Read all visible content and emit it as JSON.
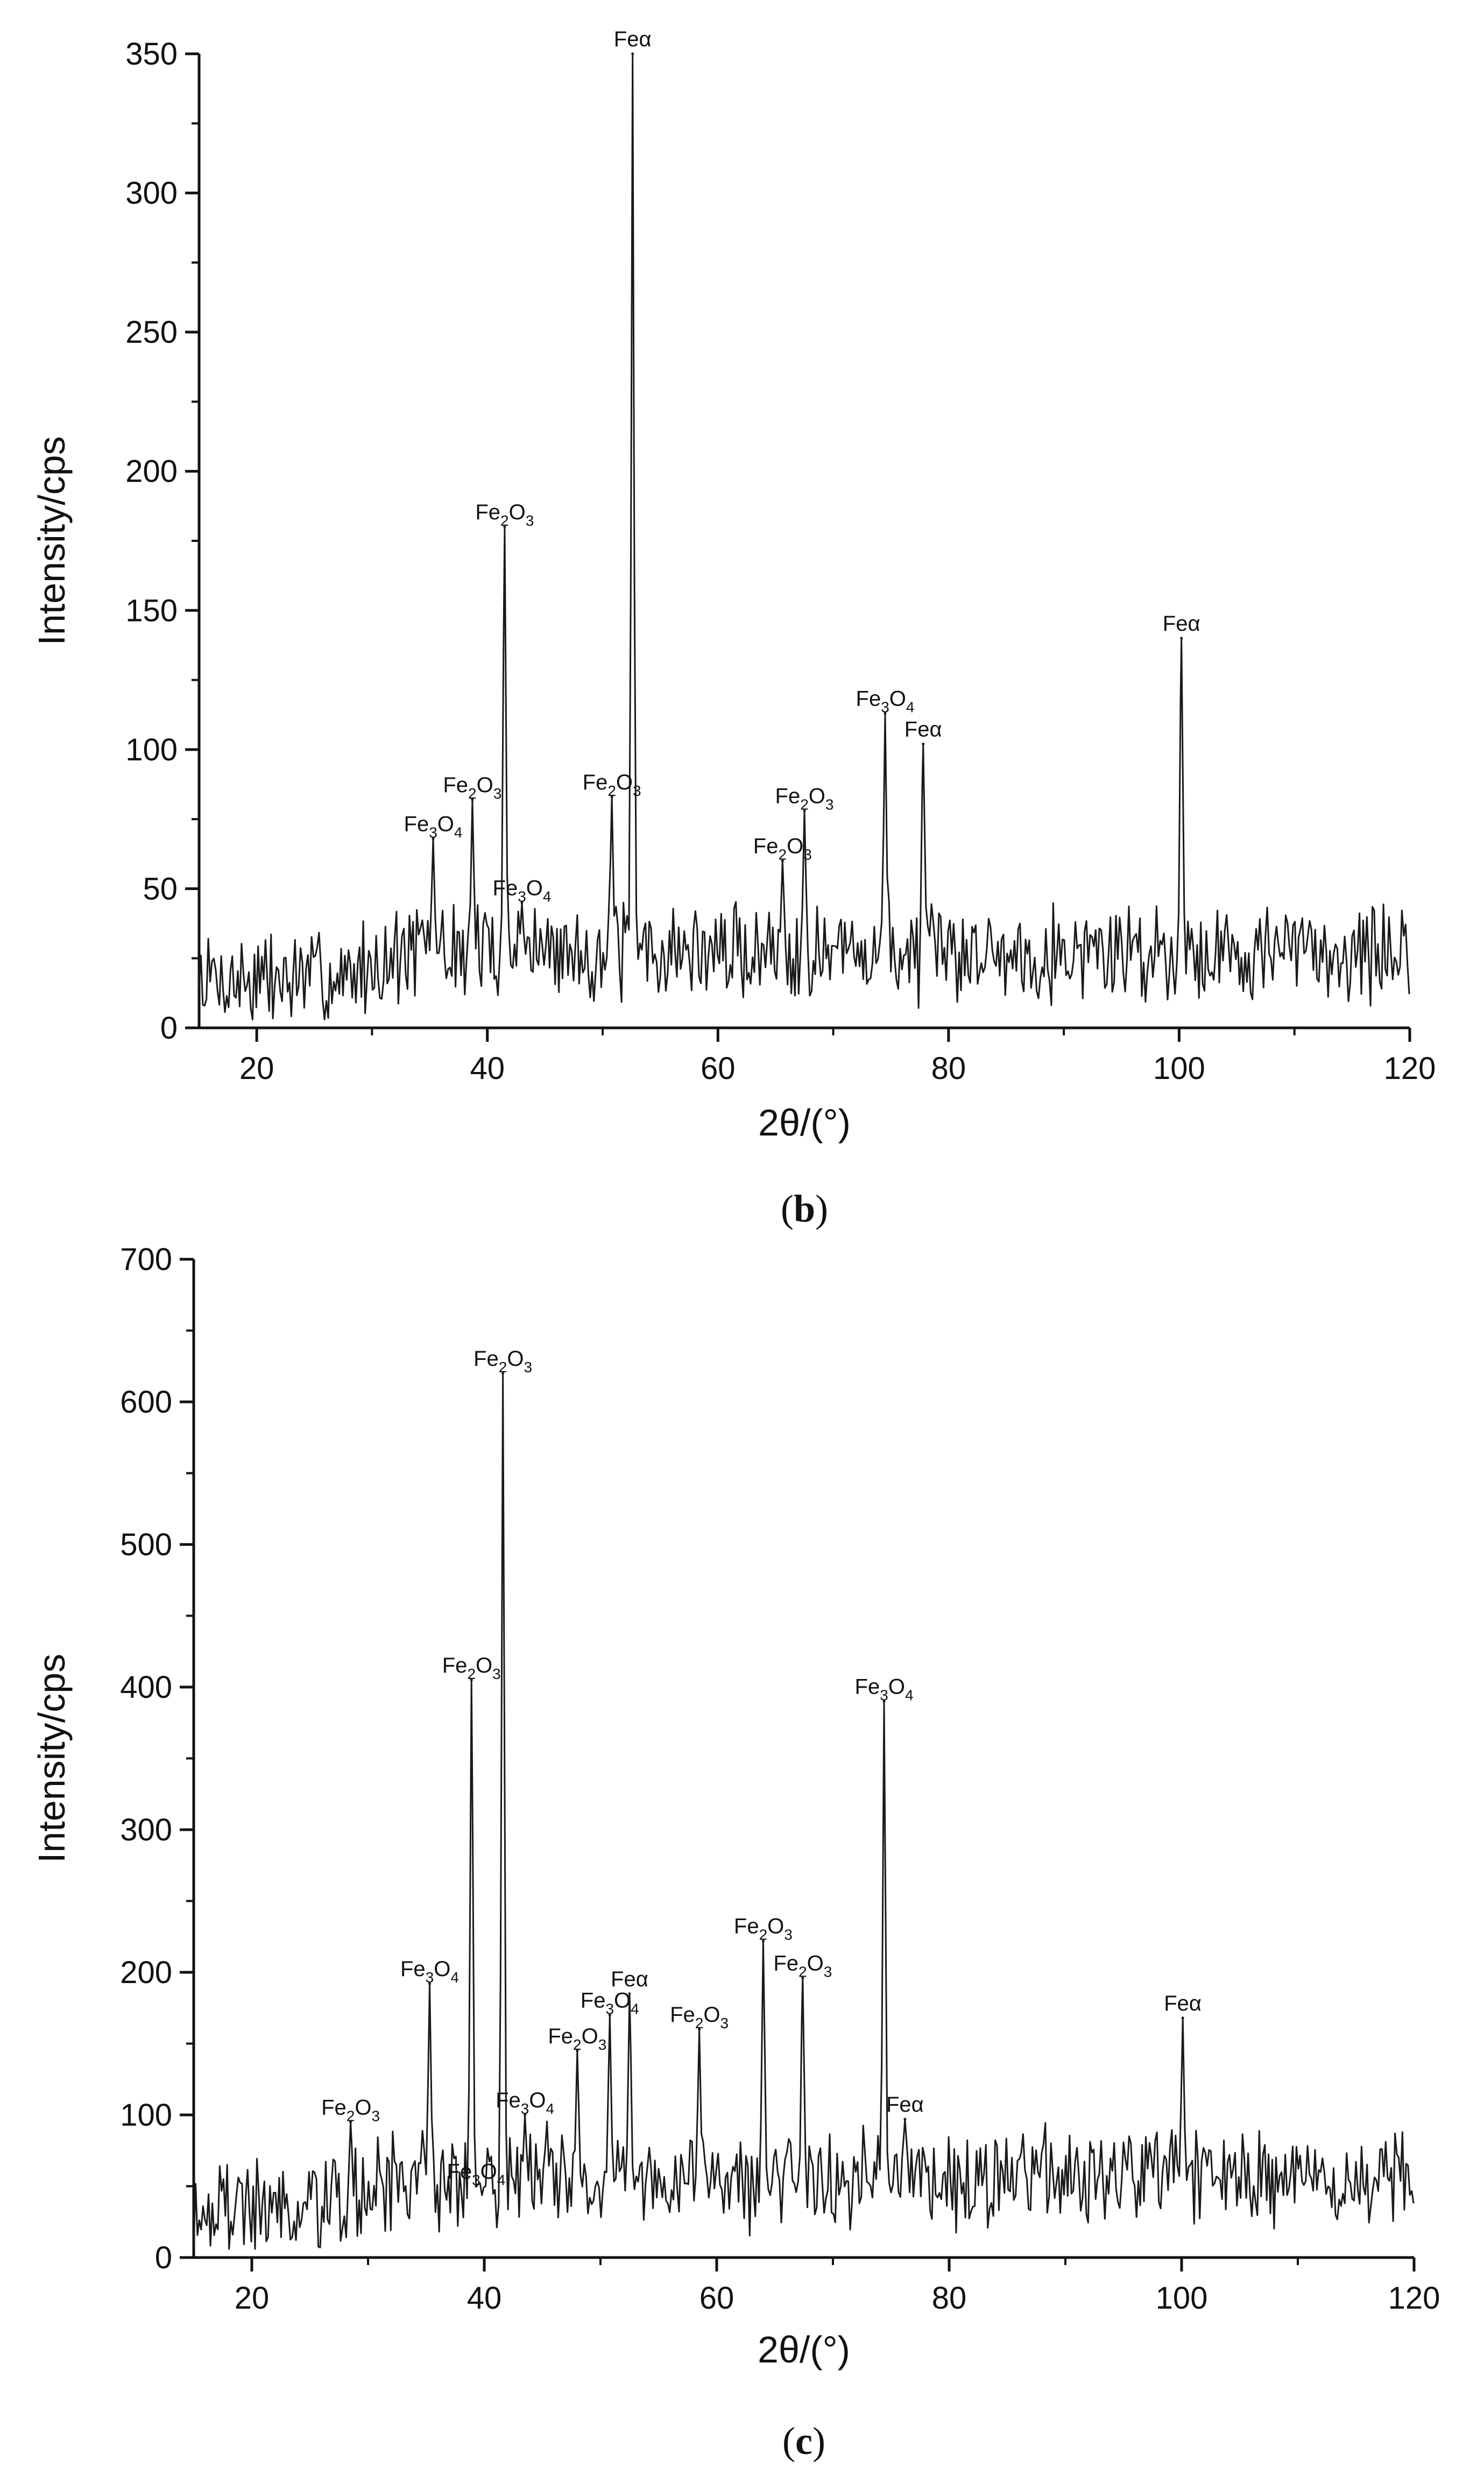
{
  "chart_data": [
    {
      "type": "line",
      "panel": "b",
      "title": "",
      "xlabel": "2θ/(°)",
      "ylabel": "Intensity/cps",
      "xlim": [
        15,
        120
      ],
      "ylim": [
        0,
        350
      ],
      "xticks": [
        20,
        40,
        60,
        80,
        100,
        120
      ],
      "yticks": [
        0,
        50,
        100,
        150,
        200,
        250,
        300,
        350
      ],
      "grid": false,
      "noise_seed": 7,
      "peaks": [
        {
          "x": 35.3,
          "y": 68,
          "label": "Fe3O4",
          "base": "Fe",
          "n1": "3",
          "n2": "4"
        },
        {
          "x": 38.7,
          "y": 82,
          "label": "Fe2O3",
          "base": "Fe",
          "n1": "2",
          "n2": "3"
        },
        {
          "x": 41.5,
          "y": 180,
          "label": "Fe2O3",
          "base": "Fe",
          "n1": "2",
          "n2": "3"
        },
        {
          "x": 43.0,
          "y": 45,
          "label": "Fe3O4",
          "base": "Fe",
          "n1": "3",
          "n2": "4"
        },
        {
          "x": 50.8,
          "y": 83,
          "label": "Fe2O3",
          "base": "Fe",
          "n1": "2",
          "n2": "3"
        },
        {
          "x": 52.6,
          "y": 350,
          "label": "Feα",
          "base": "Feα"
        },
        {
          "x": 65.6,
          "y": 60,
          "label": "Fe2O3",
          "base": "Fe",
          "n1": "2",
          "n2": "3"
        },
        {
          "x": 67.5,
          "y": 78,
          "label": "Fe2O3",
          "base": "Fe",
          "n1": "2",
          "n2": "3"
        },
        {
          "x": 74.5,
          "y": 113,
          "label": "Fe3O4",
          "base": "Fe",
          "n1": "3",
          "n2": "4"
        },
        {
          "x": 77.8,
          "y": 102,
          "label": "Feα",
          "base": "Feα"
        },
        {
          "x": 100.2,
          "y": 140,
          "label": "Feα",
          "base": "Feα"
        }
      ],
      "caption": "(b)",
      "caption_letter": "b"
    },
    {
      "type": "line",
      "panel": "c",
      "title": "",
      "xlabel": "2θ/(°)",
      "ylabel": "Intensity/cps",
      "xlim": [
        15,
        120
      ],
      "ylim": [
        0,
        700
      ],
      "xticks": [
        20,
        40,
        60,
        80,
        100,
        120
      ],
      "yticks": [
        0,
        100,
        200,
        300,
        400,
        500,
        600,
        700
      ],
      "grid": false,
      "noise_seed": 19,
      "peaks": [
        {
          "x": 28.5,
          "y": 95,
          "label": "Fe2O3",
          "base": "Fe",
          "n1": "2",
          "n2": "3"
        },
        {
          "x": 35.3,
          "y": 192,
          "label": "Fe3O4",
          "base": "Fe",
          "n1": "3",
          "n2": "4"
        },
        {
          "x": 38.9,
          "y": 405,
          "label": "Fe2O3",
          "base": "Fe",
          "n1": "2",
          "n2": "3"
        },
        {
          "x": 39.3,
          "y": 50,
          "label": "Fe3O4",
          "base": "Fe",
          "n1": "3",
          "n2": "4"
        },
        {
          "x": 41.6,
          "y": 620,
          "label": "Fe2O3",
          "base": "Fe",
          "n1": "2",
          "n2": "3"
        },
        {
          "x": 43.5,
          "y": 100,
          "label": "Fe3O4",
          "base": "Fe",
          "n1": "3",
          "n2": "4"
        },
        {
          "x": 48.0,
          "y": 145,
          "label": "Fe2O3",
          "base": "Fe",
          "n1": "2",
          "n2": "3"
        },
        {
          "x": 50.8,
          "y": 170,
          "label": "Fe3O4",
          "base": "Fe",
          "n1": "3",
          "n2": "4"
        },
        {
          "x": 52.5,
          "y": 185,
          "label": "Feα",
          "base": "Feα"
        },
        {
          "x": 58.5,
          "y": 160,
          "label": "Fe2O3",
          "base": "Fe",
          "n1": "2",
          "n2": "3"
        },
        {
          "x": 64.0,
          "y": 222,
          "label": "Fe2O3",
          "base": "Fe",
          "n1": "2",
          "n2": "3"
        },
        {
          "x": 67.4,
          "y": 196,
          "label": "Fe2O3",
          "base": "Fe",
          "n1": "2",
          "n2": "3"
        },
        {
          "x": 74.4,
          "y": 390,
          "label": "Fe3O4",
          "base": "Fe",
          "n1": "3",
          "n2": "4"
        },
        {
          "x": 76.2,
          "y": 97,
          "label": "Feα",
          "base": "Feα"
        },
        {
          "x": 100.1,
          "y": 168,
          "label": "Feα",
          "base": "Feα"
        }
      ],
      "caption": "(c)",
      "caption_letter": "c"
    }
  ]
}
